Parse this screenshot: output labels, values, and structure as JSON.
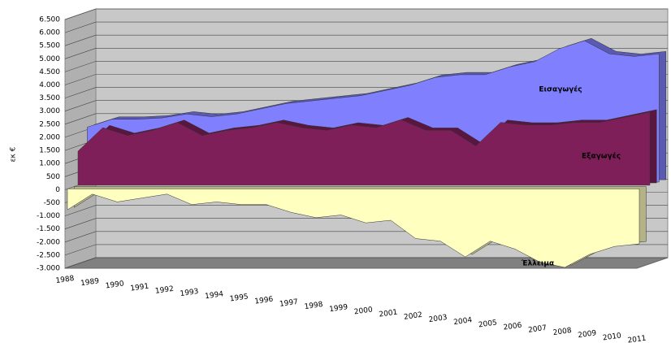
{
  "chart_data": {
    "type": "area3d",
    "y_label": "εκ €",
    "categories": [
      "1988",
      "1989",
      "1990",
      "1991",
      "1992",
      "1993",
      "1994",
      "1995",
      "1996",
      "1997",
      "1998",
      "1999",
      "2000",
      "2001",
      "2002",
      "2003",
      "2004",
      "2005",
      "2006",
      "2007",
      "2008",
      "2009",
      "2010",
      "2011"
    ],
    "series": [
      {
        "name": "Εισαγωγές",
        "color": "#8080ff",
        "values": [
          2100,
          2400,
          2400,
          2450,
          2600,
          2500,
          2600,
          2800,
          3000,
          3100,
          3200,
          3300,
          3500,
          3700,
          4000,
          4100,
          4100,
          4400,
          4600,
          5100,
          5400,
          4900,
          4800,
          4900
        ]
      },
      {
        "name": "Εξαγωγές",
        "color": "#7f1f5a",
        "values": [
          1300,
          2200,
          1900,
          2100,
          2400,
          1900,
          2100,
          2200,
          2400,
          2200,
          2100,
          2300,
          2200,
          2500,
          2100,
          2100,
          1500,
          2400,
          2300,
          2300,
          2400,
          2400,
          2600,
          2800
        ]
      },
      {
        "name": "Έλλειμα",
        "color": "#ffffc0",
        "values": [
          -800,
          -200,
          -500,
          -350,
          -200,
          -600,
          -500,
          -600,
          -600,
          -900,
          -1100,
          -1000,
          -1300,
          -1200,
          -1900,
          -2000,
          -2600,
          -2000,
          -2300,
          -2800,
          -3000,
          -2500,
          -2200,
          -2100
        ]
      }
    ],
    "ylim": [
      -3000,
      6500
    ],
    "yticks": [
      {
        "value": -3000,
        "label": "-3.000"
      },
      {
        "value": -2500,
        "label": "-2.500"
      },
      {
        "value": -2000,
        "label": "-2.000"
      },
      {
        "value": -1500,
        "label": "-1.500"
      },
      {
        "value": -1000,
        "label": "-1.000"
      },
      {
        "value": -500,
        "label": "-500"
      },
      0,
      {
        "value": 500,
        "label": "500"
      },
      {
        "value": 1000,
        "label": "1.000"
      },
      {
        "value": 1500,
        "label": "1.500"
      },
      {
        "value": 2000,
        "label": "2.000"
      },
      {
        "value": 2500,
        "label": "2.500"
      },
      {
        "value": 3000,
        "label": "3.000"
      },
      {
        "value": 3500,
        "label": "3.500"
      },
      {
        "value": 4000,
        "label": "4.000"
      },
      {
        "value": 4500,
        "label": "4.500"
      },
      {
        "value": 5000,
        "label": "5.000"
      },
      {
        "value": 5500,
        "label": "5.500"
      },
      {
        "value": 6000,
        "label": "6.000"
      },
      {
        "value": 6500,
        "label": "6.500"
      }
    ],
    "grid": true
  }
}
